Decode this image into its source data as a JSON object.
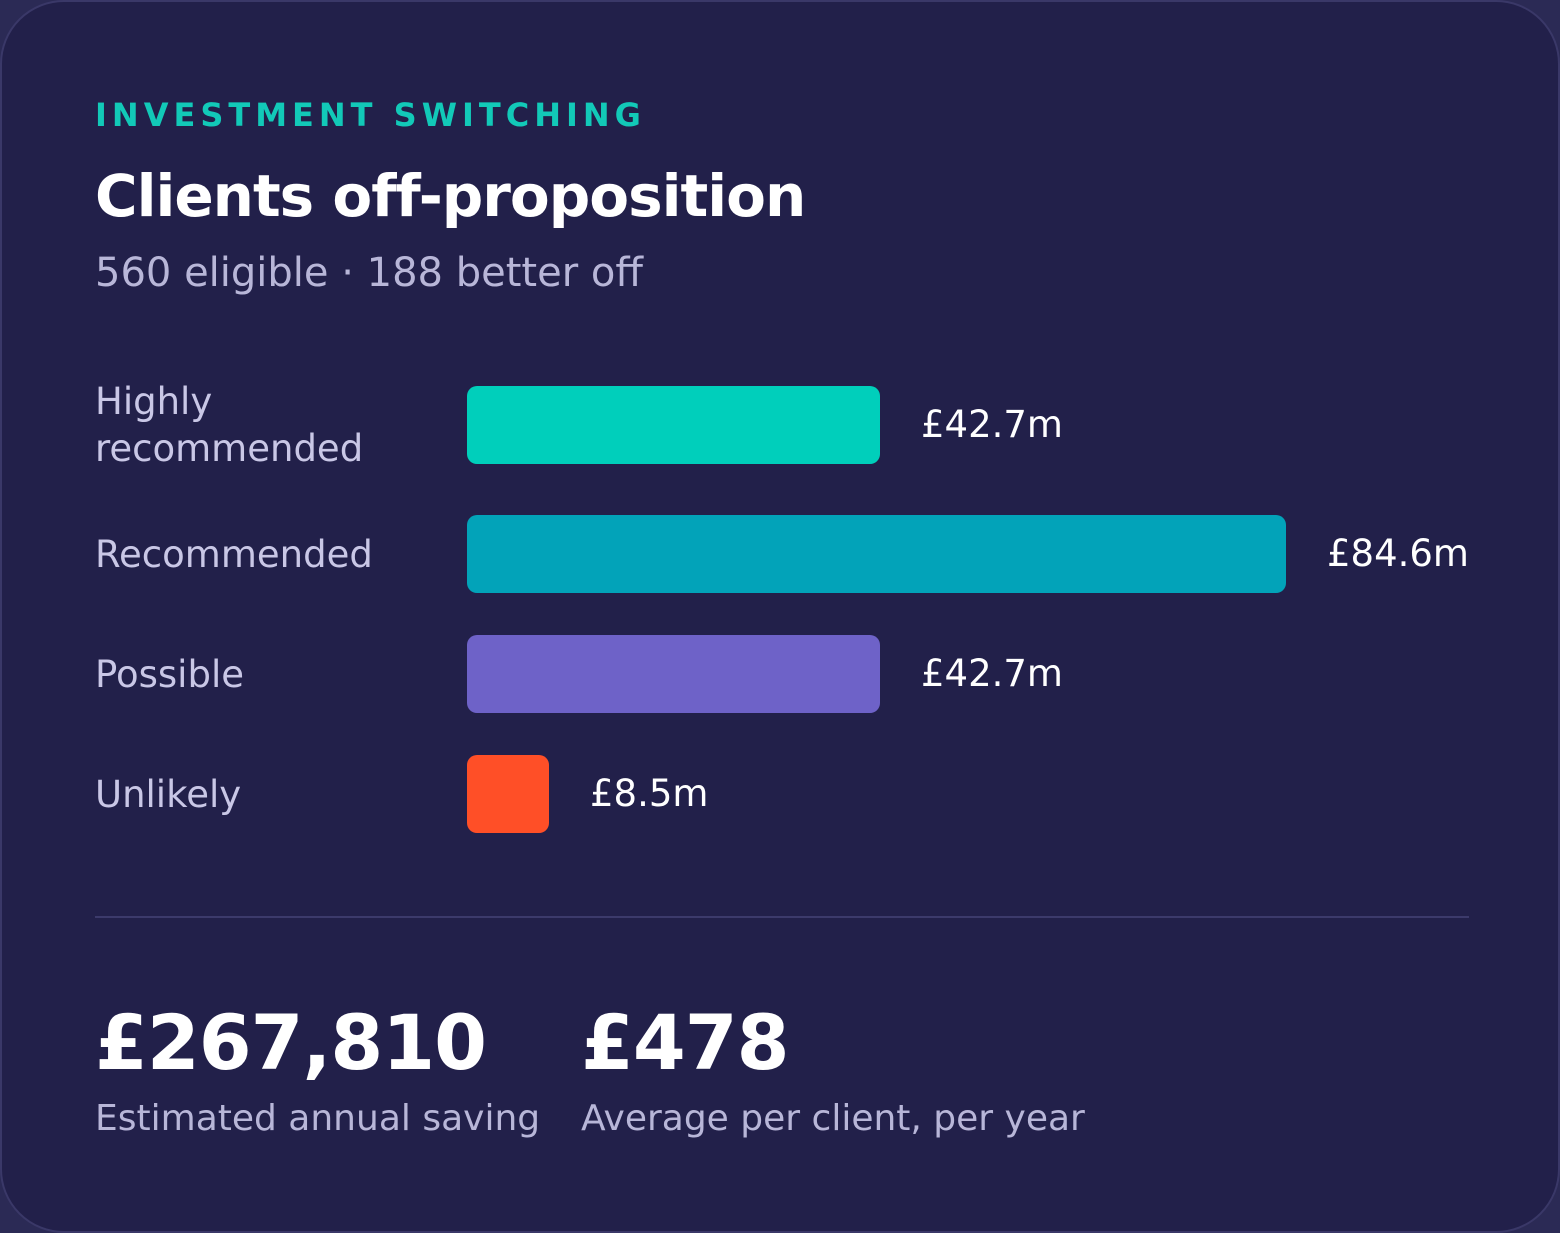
{
  "header": {
    "eyebrow": "INVESTMENT SWITCHING",
    "title": "Clients off-proposition",
    "subtitle": "560 eligible · 188 better off"
  },
  "chart_data": {
    "type": "bar",
    "orientation": "horizontal",
    "categories": [
      "Highly recommended",
      "Recommended",
      "Possible",
      "Unlikely"
    ],
    "values": [
      42.7,
      84.6,
      42.7,
      8.5
    ],
    "value_labels": [
      "£42.7m",
      "£84.6m",
      "£42.7m",
      "£8.5m"
    ],
    "colors": [
      "#00cfbb",
      "#02a3b9",
      "#6e62c8",
      "#ff4f27"
    ],
    "unit": "£m"
  },
  "stats": [
    {
      "value": "£267,810",
      "caption": "Estimated annual saving"
    },
    {
      "value": "£478",
      "caption": "Average per client, per year"
    }
  ],
  "colors": {
    "background": "#22204a",
    "accent": "#12c9b8"
  }
}
